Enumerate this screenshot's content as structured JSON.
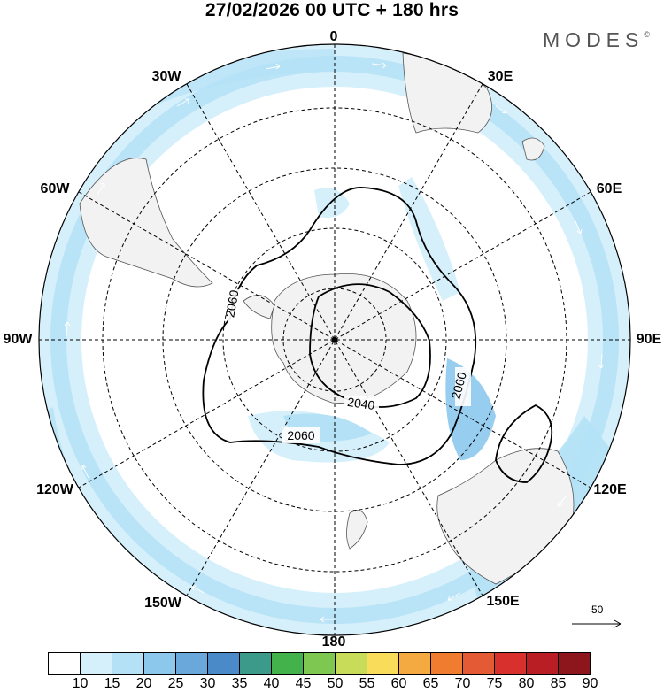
{
  "title": "27/02/2026  00 UTC  + 180 hrs",
  "brand": {
    "name": "MODES",
    "mark": "©"
  },
  "longitude_labels": {
    "n0": "0",
    "e30": "30E",
    "e60": "60E",
    "e90": "90E",
    "e120": "120E",
    "e150": "150E",
    "s180": "180",
    "w150": "150W",
    "w120": "120W",
    "w90": "90W",
    "w60": "60W",
    "w30": "30W"
  },
  "contours": {
    "c2040": "2040",
    "c2060a": "2060",
    "c2060b": "2060",
    "c2060c": "2060"
  },
  "reference_vector": "50",
  "colorbar": {
    "colors": [
      "#ffffff",
      "#d6f0fb",
      "#b4e1f6",
      "#8cc8ec",
      "#6aa8dc",
      "#4a8ac8",
      "#3c9a8a",
      "#44b24a",
      "#7ec852",
      "#c8dc5a",
      "#f8dc5a",
      "#f4aa40",
      "#f07c30",
      "#e45a34",
      "#d8302c",
      "#b81e24",
      "#8c161c"
    ],
    "labels": [
      "10",
      "15",
      "20",
      "25",
      "30",
      "35",
      "40",
      "45",
      "50",
      "55",
      "60",
      "65",
      "70",
      "75",
      "80",
      "85",
      "90"
    ]
  }
}
